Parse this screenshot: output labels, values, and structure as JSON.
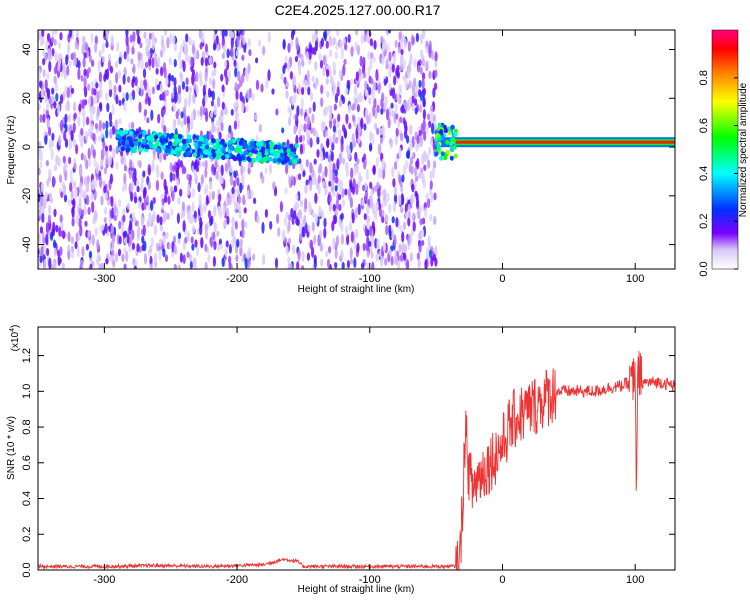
{
  "title": "C2E4.2025.127.00.00.R17",
  "chart_data": [
    {
      "type": "heatmap",
      "xlabel": "Height of straight line (km)",
      "ylabel": "Frequency (Hz)",
      "xlim": [
        -350,
        130
      ],
      "ylim": [
        -50,
        48
      ],
      "xticks": [
        "-300",
        "-200",
        "-100",
        "0",
        "100"
      ],
      "yticks": [
        "-40",
        "-20",
        "0",
        "20",
        "40"
      ],
      "colorbar": {
        "label": "Normalized spectral amplitude",
        "range": [
          0.0,
          1.0
        ],
        "ticks": [
          "0.0",
          "0.2",
          "0.4",
          "0.6",
          "0.8"
        ]
      },
      "features": [
        {
          "x_range": [
            -350,
            -50
          ],
          "description_value": "low amplitude noise band 0.1-0.3"
        },
        {
          "x_range": [
            -290,
            -155
          ],
          "freq_center": 0,
          "amplitude": 0.45
        },
        {
          "x_range": [
            -50,
            130
          ],
          "freq_center": 2,
          "amplitude": 0.9
        }
      ]
    },
    {
      "type": "line",
      "xlabel": "Height of straight line (km)",
      "ylabel": "SNR (10 * v/v)",
      "scale_label": "(x10",
      "scale_exp": "4",
      "xlim": [
        -350,
        130
      ],
      "ylim": [
        0,
        1.36
      ],
      "xticks": [
        "-300",
        "-200",
        "-100",
        "0",
        "100"
      ],
      "yticks": [
        "0.0",
        "0.2",
        "0.4",
        "0.6",
        "0.8",
        "1.0",
        "1.2"
      ],
      "series": [
        {
          "color": "#ee3333",
          "x": [
            -350,
            -330,
            -300,
            -260,
            -220,
            -180,
            -165,
            -155,
            -150,
            -120,
            -80,
            -50,
            -40,
            -35,
            -32,
            -30,
            -28,
            -26,
            -24,
            -22,
            -20,
            -15,
            -10,
            -5,
            0,
            5,
            10,
            20,
            30,
            40,
            50,
            60,
            70,
            80,
            90,
            95,
            100,
            101,
            102,
            105,
            110,
            120,
            130
          ],
          "values": [
            0.02,
            0.02,
            0.02,
            0.025,
            0.02,
            0.03,
            0.06,
            0.05,
            0.02,
            0.02,
            0.02,
            0.02,
            0.02,
            0.02,
            0.05,
            0.4,
            0.8,
            0.6,
            0.5,
            0.45,
            0.5,
            0.55,
            0.6,
            0.65,
            0.7,
            0.8,
            0.85,
            0.9,
            0.95,
            1.0,
            1.0,
            1.0,
            1.0,
            1.02,
            1.03,
            1.05,
            1.08,
            0.4,
            1.1,
            1.05,
            1.05,
            1.05,
            1.03
          ]
        }
      ]
    }
  ]
}
